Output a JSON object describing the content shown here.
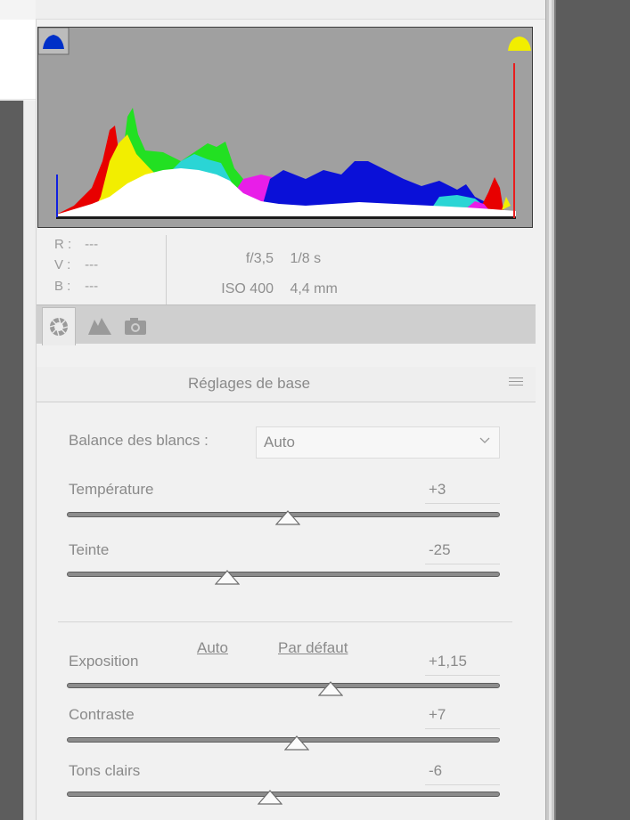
{
  "rgb": {
    "r_label": "R :",
    "r_value": "---",
    "v_label": "V :",
    "v_value": "---",
    "b_label": "B :",
    "b_value": "---"
  },
  "exif": {
    "aperture": "f/3,5",
    "shutter": "1/8 s",
    "iso": "ISO 400",
    "focal": "4,4 mm"
  },
  "tabs": [
    {
      "icon": "aperture-icon",
      "active": true
    },
    {
      "icon": "mountains-icon",
      "active": false
    },
    {
      "icon": "camera-icon",
      "active": false
    }
  ],
  "section": {
    "title": "Réglages de base"
  },
  "white_balance": {
    "label": "Balance des blancs :",
    "value": "Auto"
  },
  "links": {
    "auto": "Auto",
    "default": "Par défaut"
  },
  "sliders": [
    {
      "id": "temperature",
      "label": "Température",
      "value": "+3",
      "level": 0.51
    },
    {
      "id": "tint",
      "label": "Teinte",
      "value": "-25",
      "level": 0.37
    },
    {
      "id": "exposure",
      "label": "Exposition",
      "value": "+1,15",
      "level": 0.61
    },
    {
      "id": "contrast",
      "label": "Contraste",
      "value": "+7",
      "level": 0.53
    },
    {
      "id": "highlights",
      "label": "Tons clairs",
      "value": "-6",
      "level": 0.47
    }
  ],
  "colors": {
    "clip_shadow": "#0030c8",
    "clip_highlight": "#f2ee00",
    "histogram_bg": "#a0a0a0"
  }
}
